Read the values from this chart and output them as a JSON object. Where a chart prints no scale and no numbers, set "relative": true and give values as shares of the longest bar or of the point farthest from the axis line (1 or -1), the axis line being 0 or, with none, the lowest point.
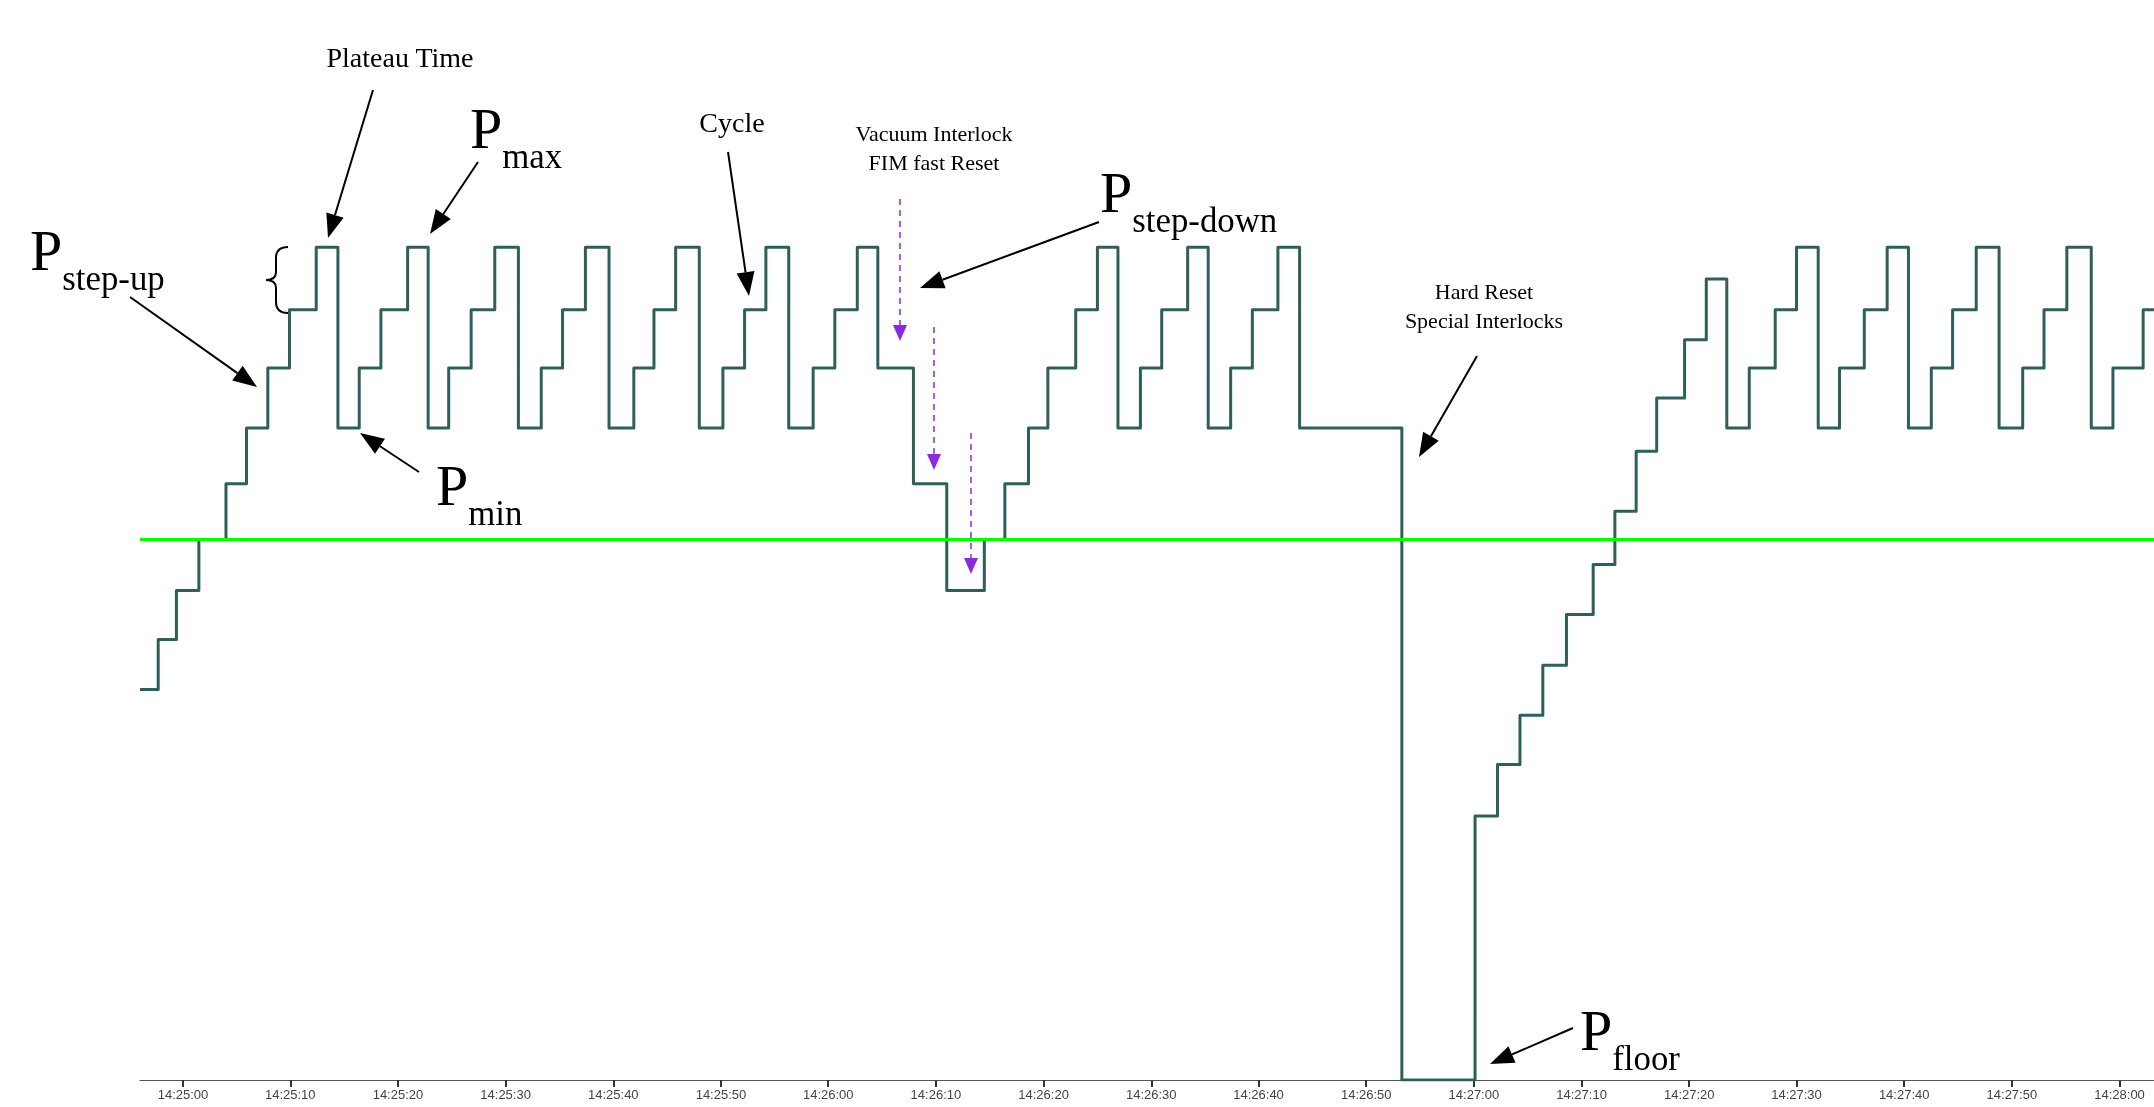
{
  "chart_data": {
    "type": "step",
    "relative": true,
    "marker": "none",
    "line_style": "solid",
    "x": [
      14.41556,
      14.41603,
      14.4165,
      14.41708,
      14.41778,
      14.41831,
      14.41886,
      14.41942,
      14.42011,
      14.42067,
      14.42122,
      14.42178,
      14.42247,
      14.423,
      14.42353,
      14.42411,
      14.42472,
      14.42533,
      14.42592,
      14.42647,
      14.42706,
      14.42767,
      14.42831,
      14.42883,
      14.42939,
      14.43,
      14.43061,
      14.43117,
      14.43172,
      14.43231,
      14.43294,
      14.4335,
      14.43408,
      14.43461,
      14.43553,
      14.43639,
      14.43736,
      14.43789,
      14.4385,
      14.439,
      14.43972,
      14.44028,
      14.44081,
      14.44139,
      14.44194,
      14.44261,
      14.44314,
      14.44372,
      14.44428,
      14.44494,
      14.4455,
      14.44814,
      14.45003,
      14.45061,
      14.45119,
      14.45178,
      14.45239,
      14.45308,
      14.45364,
      14.45419,
      14.45472,
      14.45544,
      14.456,
      14.45653,
      14.45711,
      14.45778,
      14.45833,
      14.45889,
      14.45944,
      14.46008,
      14.46067,
      14.46122,
      14.46181,
      14.46236,
      14.46297,
      14.46356,
      14.46417,
      14.46472,
      14.46531,
      14.46594,
      14.4665,
      14.46728,
      14.46756
    ],
    "series": [
      {
        "color": "#2f5f5a",
        "values": [
          0.469,
          0.529,
          0.588,
          0.649,
          0.716,
          0.783,
          0.855,
          0.925,
          1.0,
          0.783,
          0.855,
          0.925,
          1.0,
          0.783,
          0.855,
          0.925,
          1.0,
          0.783,
          0.855,
          0.925,
          1.0,
          0.783,
          0.855,
          0.925,
          1.0,
          0.783,
          0.855,
          0.925,
          1.0,
          0.783,
          0.855,
          0.925,
          1.0,
          0.855,
          0.716,
          0.588,
          0.649,
          0.716,
          0.783,
          0.855,
          0.925,
          1.0,
          0.783,
          0.855,
          0.925,
          1.0,
          0.783,
          0.855,
          0.925,
          1.0,
          0.783,
          0,
          0.317,
          0.379,
          0.438,
          0.498,
          0.559,
          0.619,
          0.683,
          0.755,
          0.819,
          0.889,
          0.962,
          0.783,
          0.855,
          0.925,
          1.0,
          0.783,
          0.855,
          0.925,
          1.0,
          0.783,
          0.855,
          0.925,
          1.0,
          0.783,
          0.855,
          0.925,
          1.0,
          0.783,
          0.855,
          0.925,
          0.925
        ]
      }
    ],
    "xlim": [
      14.41556,
      14.46756
    ],
    "xticks": [
      {
        "value": 14.41667,
        "label": "14:25:00"
      },
      {
        "value": 14.41944,
        "label": "14:25:10"
      },
      {
        "value": 14.42222,
        "label": "14:25:20"
      },
      {
        "value": 14.425,
        "label": "14:25:30"
      },
      {
        "value": 14.42778,
        "label": "14:25:40"
      },
      {
        "value": 14.43056,
        "label": "14:25:50"
      },
      {
        "value": 14.43333,
        "label": "14:26:00"
      },
      {
        "value": 14.43611,
        "label": "14:26:10"
      },
      {
        "value": 14.43889,
        "label": "14:26:20"
      },
      {
        "value": 14.44167,
        "label": "14:26:30"
      },
      {
        "value": 14.44444,
        "label": "14:26:40"
      },
      {
        "value": 14.44722,
        "label": "14:26:50"
      },
      {
        "value": 14.45,
        "label": "14:27:00"
      },
      {
        "value": 14.45278,
        "label": "14:27:10"
      },
      {
        "value": 14.45556,
        "label": "14:27:20"
      },
      {
        "value": 14.45833,
        "label": "14:27:30"
      },
      {
        "value": 14.46111,
        "label": "14:27:40"
      },
      {
        "value": 14.46389,
        "label": "14:27:50"
      },
      {
        "value": 14.46667,
        "label": "14:28:00"
      }
    ],
    "ref_lines": [
      {
        "axis": "y",
        "value": 0.649,
        "color": "#00ff00"
      }
    ],
    "annotations": [
      "Plateau Time",
      "P$_{max}$",
      "Cycle",
      "Vacuum Interlock\nFIM fast Reset",
      "P$_{step-down}$",
      "P$_{step-up}$",
      "P$_{min}$",
      "Hard Reset\nSpecial Interlocks",
      "P$_{floor}$"
    ]
  }
}
